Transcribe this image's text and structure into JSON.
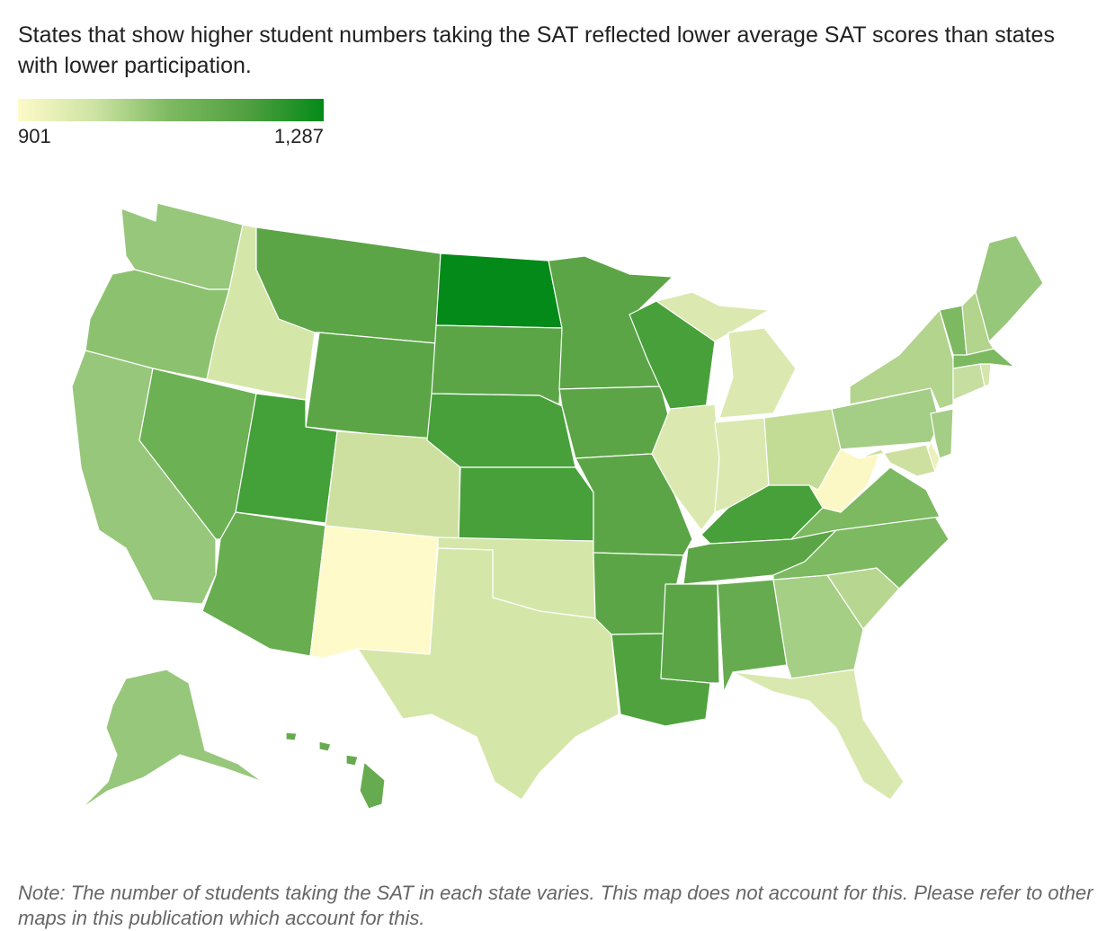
{
  "subtitle": "States that show higher student numbers taking the SAT reflected lower average SAT scores than states with lower participation.",
  "legend": {
    "min_label": "901",
    "max_label": "1,287",
    "min_value": 901,
    "max_value": 1287,
    "colors": [
      "#fefac9",
      "#cde3a3",
      "#7cb960",
      "#51a040",
      "#048a18"
    ]
  },
  "note": "Note: The number of students taking the SAT in each state varies. This map does not account for this. Please refer to other maps in this publication which account for this.",
  "map_fills": {
    "WA": "#97c77a",
    "OR": "#8cc26f",
    "CA": "#97c77a",
    "ID": "#d5e6a9",
    "NV": "#6cb154",
    "MT": "#5ba547",
    "WY": "#5ba547",
    "UT": "#44a038",
    "CO": "#cde0a0",
    "AZ": "#68ad50",
    "NM": "#fefac9",
    "ND": "#048a18",
    "SD": "#5ba547",
    "NE": "#48a03a",
    "KS": "#48a03a",
    "OK": "#d5e6a9",
    "TX": "#d5e6a9",
    "MN": "#5ba547",
    "IA": "#5ba547",
    "MO": "#5ba547",
    "AR": "#5ba547",
    "LA": "#4fa23e",
    "WI": "#48a03a",
    "IL": "#dbe9b0",
    "MI": "#dbe9b0",
    "IN": "#dbe9b0",
    "OH": "#c2dc96",
    "KY": "#48a03a",
    "TN": "#5ba547",
    "MS": "#5ba547",
    "AL": "#66ab4f",
    "GA": "#a6cf86",
    "FL": "#d9e8ae",
    "SC": "#b7d790",
    "NC": "#7cb960",
    "VA": "#7cb960",
    "WV": "#fcf8c6",
    "PA": "#a4cd85",
    "NY": "#b3d48c",
    "VT": "#7cb960",
    "NH": "#b3d48c",
    "ME": "#97c77a",
    "MA": "#7cb960",
    "CT": "#c6deA0",
    "RI": "#d5e6a9",
    "NJ": "#a4cd85",
    "DE": "#ecf1bc",
    "MD": "#cde0a0",
    "AK": "#97c77a",
    "HI": "#66ab4f"
  }
}
